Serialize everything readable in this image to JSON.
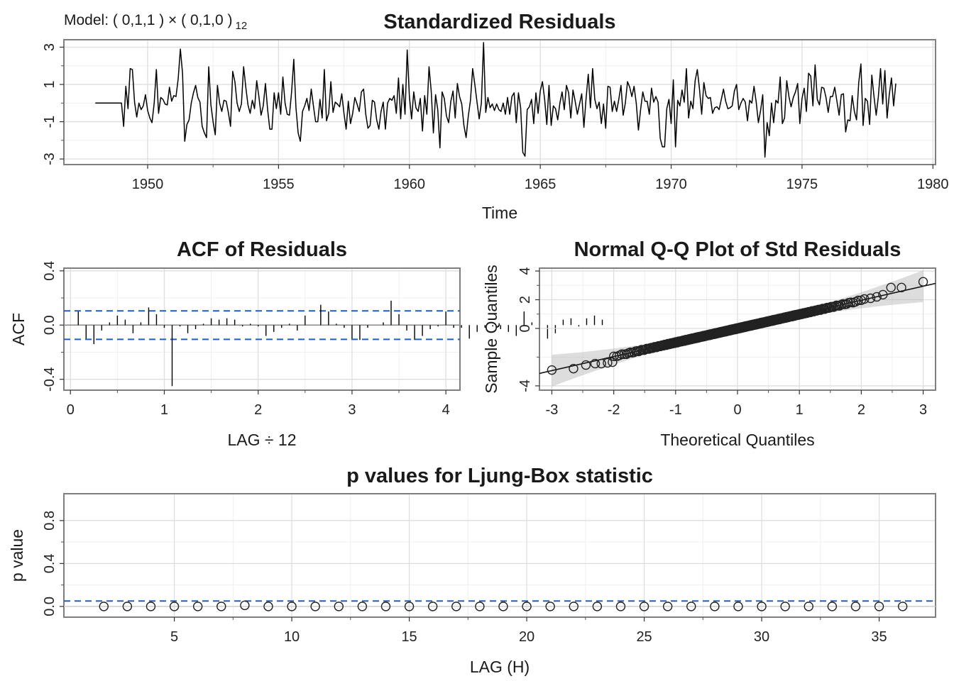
{
  "model_label": {
    "prefix": "Model: ( 0,1,1 ) × ( 0,1,0 )",
    "period": "12"
  },
  "colors": {
    "series": "#000000",
    "reference_line": "#1f5fbf",
    "frame": "#7f7f7f",
    "grid": "#dedede",
    "band": "#b3b3b3"
  },
  "chart_data": [
    {
      "id": "std_residuals",
      "type": "line",
      "title": "Standardized Residuals",
      "xlabel": "Time",
      "ylabel": "",
      "xlim": [
        1946.8,
        1980.1
      ],
      "ylim": [
        -3.3,
        3.4
      ],
      "xticks": [
        1950,
        1955,
        1960,
        1965,
        1970,
        1975,
        1980
      ],
      "xtick_labels": [
        "1950",
        "1955",
        "1960",
        "1965",
        "1970",
        "1975",
        "1980"
      ],
      "yticks": [
        -3,
        -1,
        1,
        3
      ],
      "ytick_labels": [
        "-3",
        "-1",
        "1",
        "3"
      ],
      "x_start": 1948.0,
      "x_step": 0.08333,
      "values": [
        0.0,
        0.0,
        0.0,
        0.0,
        0.0,
        0.0,
        0.0,
        0.0,
        0.0,
        0.0,
        0.0,
        0.0,
        0.0,
        -1.25,
        0.9,
        -0.3,
        1.85,
        1.8,
        0.05,
        -0.75,
        0.0,
        -0.35,
        -0.15,
        0.45,
        -0.4,
        -0.8,
        -1.05,
        0.0,
        1.8,
        -0.55,
        0.3,
        0.2,
        -0.05,
        -0.1,
        0.85,
        0.1,
        0.4,
        0.35,
        1.3,
        2.9,
        1.6,
        -2.05,
        -1.15,
        -0.9,
        0.0,
        0.55,
        0.95,
        0.3,
        0.05,
        -1.25,
        -1.6,
        -1.85,
        1.95,
        -0.1,
        -1.0,
        -1.7,
        0.95,
        0.0,
        -0.45,
        0.15,
        0.1,
        -0.5,
        -1.25,
        1.7,
        1.15,
        0.0,
        -0.45,
        -0.05,
        1.95,
        0.85,
        -0.1,
        -0.55,
        0.15,
        -0.3,
        1.2,
        0.35,
        -0.65,
        -0.15,
        1.05,
        -0.35,
        -1.4,
        -1.4,
        0.55,
        -0.3,
        0.55,
        -0.6,
        1.4,
        0.0,
        -0.6,
        -0.65,
        0.6,
        2.35,
        -0.25,
        -1.6,
        -2.05,
        -0.45,
        -0.15,
        0.25,
        -0.4,
        0.75,
        -0.15,
        -1.0,
        -1.0,
        0.2,
        -0.8,
        1.8,
        -0.95,
        -0.55,
        1.15,
        -0.5,
        0.05,
        -0.05,
        -0.2,
        0.5,
        -0.55,
        -1.4,
        0.1,
        -1.1,
        -0.55,
        0.3,
        -0.05,
        -0.45,
        0.6,
        0.75,
        -0.6,
        -1.35,
        -1.2,
        0.15,
        0.05,
        -0.9,
        -1.4,
        -0.45,
        0.05,
        -1.4,
        0.0,
        0.25,
        0.15,
        0.4,
        -0.55,
        1.35,
        -0.85,
        1.0,
        -0.6,
        2.85,
        0.35,
        -0.85,
        0.6,
        -0.25,
        -0.45,
        0.25,
        -1.5,
        0.4,
        -0.6,
        1.95,
        0.65,
        -1.6,
        0.45,
        -0.35,
        -2.4,
        0.6,
        0.25,
        -0.7,
        -1.05,
        0.1,
        0.65,
        -0.8,
        1.05,
        0.35,
        -0.05,
        -1.2,
        -1.85,
        -0.7,
        0.15,
        1.85,
        1.0,
        0.05,
        -0.85,
        0.0,
        3.25,
        -0.5,
        0.3,
        -0.25,
        -0.05,
        -0.4,
        -0.05,
        -0.35,
        -0.45,
        0.0,
        -0.6,
        0.3,
        -0.6,
        0.35,
        0.55,
        -1.05,
        0.55,
        -0.25,
        -2.65,
        -2.85,
        -0.35,
        -0.2,
        0.2,
        -1.1,
        0.55,
        -0.55,
        0.65,
        1.15,
        0.2,
        -1.15,
        0.95,
        -1.2,
        -0.15,
        -0.3,
        -0.9,
        0.0,
        0.6,
        -0.35,
        0.95,
        0.55,
        -0.8,
        0.7,
        0.1,
        -0.6,
        -0.05,
        0.5,
        -1.3,
        0.25,
        1.55,
        -0.25,
        1.85,
        0.2,
        -0.3,
        0.05,
        -1.1,
        -0.05,
        -1.35,
        0.9,
        0.85,
        -0.45,
        0.1,
        -0.45,
        0.2,
        0.95,
        -0.65,
        0.0,
        1.15,
        0.85,
        0.35,
        0.9,
        0.0,
        -1.45,
        -0.35,
        0.6,
        0.1,
        0.1,
        -0.6,
        0.8,
        0.05,
        0.35,
        0.05,
        -1.9,
        -2.35,
        -2.35,
        -0.3,
        0.2,
        -1.1,
        1.25,
        -2.35,
        0.15,
        -0.15,
        0.7,
        0.05,
        1.85,
        -0.8,
        0.1,
        -0.3,
        1.2,
        1.8,
        0.75,
        -0.6,
        1.1,
        0.4,
        0.25,
        0.3,
        -0.55,
        -0.25,
        -0.2,
        -0.35,
        0.2,
        0.75,
        0.1,
        -0.3,
        -0.25,
        -0.15,
        0.65,
        1.0,
        -0.35,
        0.0,
        0.25,
        0.05,
        -0.95,
        0.15,
        0.0,
        0.9,
        0.05,
        -1.05,
        -0.4,
        0.45,
        -2.9,
        -1.05,
        -1.75,
        0.0,
        -1.05,
        0.15,
        0.0,
        1.4,
        -1.1,
        -0.8,
        1.2,
        0.35,
        -0.2,
        0.3,
        0.6,
        1.05,
        -1.1,
        0.25,
        0.8,
        -0.45,
        1.6,
        1.45,
        -0.15,
        2.05,
        0.2,
        -0.1,
        0.85,
        0.8,
        0.3,
        -0.5,
        0.35,
        0.35,
        0.85,
        0.1,
        -0.65,
        0.45,
        0.5,
        -1.55,
        -0.9,
        -0.95,
        0.4,
        -0.45,
        -0.9,
        1.1,
        2.1,
        -1.2,
        0.25,
        0.1,
        -1.15,
        1.5,
        0.35,
        -0.65,
        0.35,
        1.85,
        -0.05,
        1.75,
        -0.8,
        0.45,
        1.35,
        -0.15,
        1.05
      ]
    },
    {
      "id": "acf_residuals",
      "type": "bar",
      "title": "ACF of Residuals",
      "xlabel": "LAG ÷ 12",
      "ylabel": "ACF",
      "xlim": [
        -0.07,
        4.15
      ],
      "ylim": [
        -0.48,
        0.42
      ],
      "xticks": [
        0,
        1,
        2,
        3,
        4
      ],
      "xtick_labels": [
        "0",
        "1",
        "2",
        "3",
        "4"
      ],
      "yticks": [
        -0.4,
        0.0,
        0.4
      ],
      "ytick_labels": [
        "-0.4",
        "0.0",
        "0.4"
      ],
      "confidence_limit": 0.105,
      "lag_step": 0.08333,
      "values": [
        0.1,
        -0.1,
        -0.14,
        -0.04,
        0.02,
        0.07,
        0.04,
        -0.06,
        0.02,
        0.13,
        0.08,
        -0.02,
        -0.45,
        -0.01,
        -0.06,
        -0.03,
        0.01,
        0.05,
        0.04,
        0.05,
        0.04,
        -0.01,
        0.01,
        -0.01,
        -0.08,
        -0.05,
        -0.02,
        0.01,
        -0.04,
        0.07,
        0.0,
        0.15,
        0.1,
        0.01,
        -0.02,
        -0.1,
        -0.11,
        -0.02,
        0.0,
        0.02,
        0.18,
        0.08,
        -0.04,
        -0.11,
        -0.08,
        -0.03,
        -0.01,
        0.1,
        -0.02,
        -0.02,
        -0.1,
        -0.05,
        -0.02,
        -0.01,
        -0.03,
        -0.05,
        -0.08,
        0.1,
        0.02,
        0.1,
        -0.1,
        -0.06,
        0.04,
        0.05,
        -0.01,
        0.05,
        0.07,
        0.04
      ]
    },
    {
      "id": "qq_plot",
      "type": "scatter",
      "title": "Normal Q-Q Plot of Std Residuals",
      "xlabel": "Theoretical Quantiles",
      "ylabel": "Sample Quantiles",
      "xlim": [
        -3.2,
        3.2
      ],
      "ylim": [
        -4.3,
        4.2
      ],
      "xticks": [
        -3,
        -2,
        -1,
        0,
        1,
        2,
        3
      ],
      "xtick_labels": [
        "-3",
        "-2",
        "-1",
        "0",
        "1",
        "2",
        "3"
      ],
      "yticks": [
        -4,
        0,
        2,
        4
      ],
      "ytick_labels": [
        "-4",
        "0",
        "2",
        "4"
      ],
      "reference_line": {
        "intercept": 0.0,
        "slope": 0.98
      },
      "n_points": 372,
      "tail_points": [
        [
          -3.0,
          -2.9
        ],
        [
          -2.65,
          -2.8
        ],
        [
          -2.45,
          -2.55
        ],
        [
          -2.3,
          -2.45
        ],
        [
          -2.2,
          -2.45
        ],
        [
          -2.1,
          -2.4
        ],
        [
          -2.02,
          -2.35
        ],
        [
          2.05,
          2.05
        ],
        [
          2.15,
          2.1
        ],
        [
          2.25,
          2.2
        ],
        [
          2.35,
          2.35
        ],
        [
          2.48,
          2.85
        ],
        [
          2.65,
          2.85
        ],
        [
          3.0,
          3.25
        ]
      ]
    },
    {
      "id": "ljung_box",
      "type": "scatter",
      "title": "p values for Ljung-Box statistic",
      "xlabel": "LAG (H)",
      "ylabel": "p value",
      "xlim": [
        0.3,
        37.4
      ],
      "ylim": [
        -0.1,
        1.05
      ],
      "xticks": [
        5,
        10,
        15,
        20,
        25,
        30,
        35
      ],
      "xtick_labels": [
        "5",
        "10",
        "15",
        "20",
        "25",
        "30",
        "35"
      ],
      "yticks": [
        0.0,
        0.4,
        0.8
      ],
      "ytick_labels": [
        "0.0",
        "0.4",
        "0.8"
      ],
      "significance_level": 0.05,
      "x": [
        2,
        3,
        4,
        5,
        6,
        7,
        8,
        9,
        10,
        11,
        12,
        13,
        14,
        15,
        16,
        17,
        18,
        19,
        20,
        21,
        22,
        23,
        24,
        25,
        26,
        27,
        28,
        29,
        30,
        31,
        32,
        33,
        34,
        35,
        36
      ],
      "values": [
        0.0,
        0.0,
        0.0,
        0.0,
        0.0,
        0.0,
        0.01,
        0.0,
        0.0,
        0.0,
        0.0,
        0.0,
        0.0,
        0.0,
        0.0,
        0.0,
        0.0,
        0.0,
        0.0,
        0.0,
        0.0,
        0.0,
        0.0,
        0.0,
        0.0,
        0.0,
        0.0,
        0.0,
        0.0,
        0.0,
        0.0,
        0.0,
        0.0,
        0.0,
        0.0
      ]
    }
  ]
}
